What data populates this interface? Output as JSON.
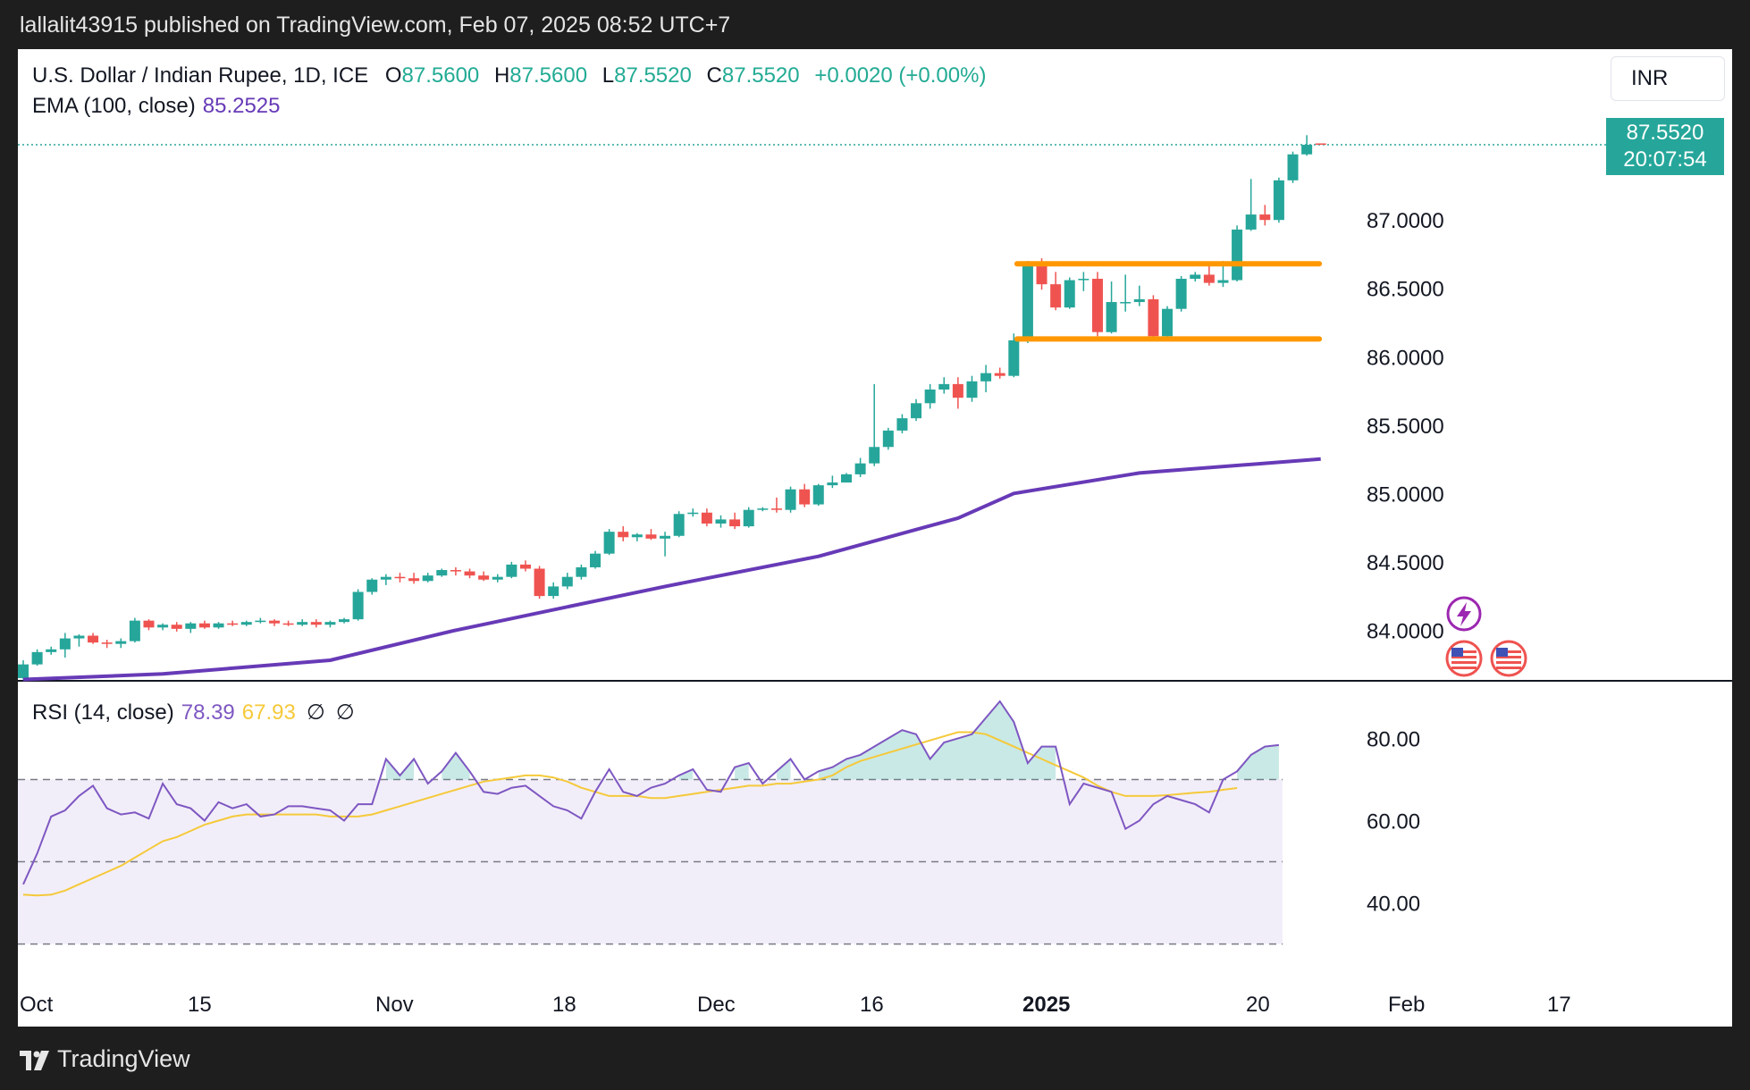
{
  "published": "lallalit43915 published on TradingView.com, Feb 07, 2025 08:52 UTC+7",
  "brand": "TradingView",
  "header": {
    "symbol": "U.S. Dollar / Indian Rupee, 1D, ICE",
    "open_label": "O",
    "open": "87.5600",
    "high_label": "H",
    "high": "87.5600",
    "low_label": "L",
    "low": "87.5520",
    "close_label": "C",
    "close": "87.5520",
    "change": "+0.0020 (+0.00%)"
  },
  "ema": {
    "label": "EMA (100, close)",
    "value": "85.2525"
  },
  "rsi": {
    "label": "RSI (14, close)",
    "value": "78.39",
    "ma_value": "67.93",
    "null1": "∅",
    "null2": "∅"
  },
  "currency": "INR",
  "last_price": {
    "price": "87.5520",
    "countdown": "20:07:54"
  },
  "colors": {
    "up": "#26a69a",
    "down": "#ef5350",
    "ema": "#673ab7",
    "rsi": "#7e57c2",
    "rsi_ma": "#f5c93a",
    "channel": "#ff9800",
    "background": "#1e1e1e"
  },
  "icons": [
    "bolt-icon",
    "us-flag-icon",
    "us-flag-icon"
  ],
  "chart_data": [
    {
      "type": "candlestick",
      "title": "U.S. Dollar / Indian Rupee, 1D, ICE",
      "y_ticks": [
        "84.0000",
        "84.5000",
        "85.0000",
        "85.5000",
        "86.0000",
        "86.5000",
        "87.0000"
      ],
      "ylim": [
        83.63,
        87.89
      ],
      "x_ticks": [
        "Oct",
        "15",
        "Nov",
        "18",
        "Dec",
        "16",
        "2025",
        "20",
        "Feb",
        "17"
      ],
      "candles_ohlc": [
        [
          83.65,
          83.78,
          83.64,
          83.75
        ],
        [
          83.75,
          83.86,
          83.74,
          83.84
        ],
        [
          83.84,
          83.88,
          83.82,
          83.86
        ],
        [
          83.86,
          83.98,
          83.8,
          83.94
        ],
        [
          83.94,
          83.97,
          83.88,
          83.96
        ],
        [
          83.96,
          83.98,
          83.9,
          83.91
        ],
        [
          83.91,
          83.93,
          83.87,
          83.9
        ],
        [
          83.9,
          83.94,
          83.87,
          83.92
        ],
        [
          83.92,
          84.09,
          83.91,
          84.07
        ],
        [
          84.07,
          84.08,
          84.0,
          84.02
        ],
        [
          84.02,
          84.05,
          84.0,
          84.04
        ],
        [
          84.04,
          84.06,
          83.99,
          84.01
        ],
        [
          84.01,
          84.06,
          83.98,
          84.05
        ],
        [
          84.05,
          84.07,
          84.01,
          84.02
        ],
        [
          84.02,
          84.06,
          84.01,
          84.05
        ],
        [
          84.05,
          84.07,
          84.03,
          84.04
        ],
        [
          84.04,
          84.07,
          84.03,
          84.06
        ],
        [
          84.06,
          84.09,
          84.05,
          84.07
        ],
        [
          84.07,
          84.08,
          84.03,
          84.05
        ],
        [
          84.05,
          84.07,
          84.03,
          84.04
        ],
        [
          84.04,
          84.08,
          84.03,
          84.06
        ],
        [
          84.06,
          84.08,
          84.02,
          84.04
        ],
        [
          84.04,
          84.07,
          84.02,
          84.06
        ],
        [
          84.06,
          84.09,
          84.05,
          84.08
        ],
        [
          84.08,
          84.3,
          84.07,
          84.28
        ],
        [
          84.28,
          84.38,
          84.26,
          84.37
        ],
        [
          84.37,
          84.41,
          84.33,
          84.39
        ],
        [
          84.39,
          84.42,
          84.35,
          84.38
        ],
        [
          84.38,
          84.42,
          84.34,
          84.36
        ],
        [
          84.36,
          84.42,
          84.35,
          84.4
        ],
        [
          84.4,
          84.45,
          84.39,
          84.44
        ],
        [
          84.44,
          84.46,
          84.4,
          84.43
        ],
        [
          84.43,
          84.45,
          84.38,
          84.4
        ],
        [
          84.4,
          84.43,
          84.36,
          84.37
        ],
        [
          84.37,
          84.41,
          84.35,
          84.39
        ],
        [
          84.39,
          84.5,
          84.38,
          84.48
        ],
        [
          84.48,
          84.51,
          84.43,
          84.45
        ],
        [
          84.45,
          84.47,
          84.23,
          84.25
        ],
        [
          84.25,
          84.35,
          84.23,
          84.32
        ],
        [
          84.32,
          84.42,
          84.3,
          84.39
        ],
        [
          84.39,
          84.48,
          84.37,
          84.46
        ],
        [
          84.46,
          84.58,
          84.45,
          84.56
        ],
        [
          84.56,
          84.74,
          84.55,
          84.72
        ],
        [
          84.72,
          84.76,
          84.65,
          84.68
        ],
        [
          84.68,
          84.71,
          84.65,
          84.7
        ],
        [
          84.7,
          84.74,
          84.66,
          84.67
        ],
        [
          84.67,
          84.72,
          84.54,
          84.69
        ],
        [
          84.69,
          84.87,
          84.68,
          84.85
        ],
        [
          84.85,
          84.89,
          84.83,
          84.86
        ],
        [
          84.86,
          84.89,
          84.76,
          84.78
        ],
        [
          84.78,
          84.84,
          84.75,
          84.81
        ],
        [
          84.81,
          84.86,
          84.74,
          84.76
        ],
        [
          84.76,
          84.9,
          84.75,
          84.88
        ],
        [
          84.88,
          84.9,
          84.87,
          84.89
        ],
        [
          84.89,
          84.97,
          84.86,
          84.88
        ],
        [
          84.88,
          85.05,
          84.86,
          85.03
        ],
        [
          85.03,
          85.07,
          84.9,
          84.92
        ],
        [
          84.92,
          85.07,
          84.91,
          85.06
        ],
        [
          85.06,
          85.13,
          85.04,
          85.08
        ],
        [
          85.08,
          85.15,
          85.1,
          85.14
        ],
        [
          85.14,
          85.26,
          85.12,
          85.22
        ],
        [
          85.22,
          85.8,
          85.2,
          85.34
        ],
        [
          85.34,
          85.48,
          85.32,
          85.46
        ],
        [
          85.46,
          85.58,
          85.44,
          85.55
        ],
        [
          85.55,
          85.69,
          85.53,
          85.66
        ],
        [
          85.66,
          85.8,
          85.62,
          85.76
        ],
        [
          85.76,
          85.85,
          85.73,
          85.8
        ],
        [
          85.8,
          85.85,
          85.62,
          85.7
        ],
        [
          85.7,
          85.86,
          85.67,
          85.82
        ],
        [
          85.82,
          85.94,
          85.74,
          85.88
        ],
        [
          85.88,
          85.92,
          85.84,
          85.86
        ],
        [
          85.86,
          86.17,
          85.85,
          86.12
        ],
        [
          86.12,
          86.7,
          86.1,
          86.68
        ],
        [
          86.68,
          86.72,
          86.49,
          86.53
        ],
        [
          86.53,
          86.62,
          86.34,
          86.36
        ],
        [
          86.36,
          86.58,
          86.35,
          86.56
        ],
        [
          86.56,
          86.62,
          86.48,
          86.57
        ],
        [
          86.57,
          86.62,
          86.15,
          86.18
        ],
        [
          86.18,
          86.55,
          86.17,
          86.4
        ],
        [
          86.4,
          86.6,
          86.33,
          86.4
        ],
        [
          86.4,
          86.52,
          86.37,
          86.42
        ],
        [
          86.42,
          86.45,
          86.12,
          86.15
        ],
        [
          86.15,
          86.37,
          86.12,
          86.35
        ],
        [
          86.35,
          86.59,
          86.33,
          86.57
        ],
        [
          86.57,
          86.62,
          86.55,
          86.6
        ],
        [
          86.6,
          86.68,
          86.52,
          86.54
        ],
        [
          86.54,
          86.7,
          86.51,
          86.56
        ],
        [
          86.56,
          86.96,
          86.55,
          86.93
        ],
        [
          86.93,
          87.3,
          86.92,
          87.04
        ],
        [
          87.04,
          87.11,
          86.96,
          87.0
        ],
        [
          87.0,
          87.31,
          86.98,
          87.29
        ],
        [
          87.29,
          87.5,
          87.27,
          87.48
        ],
        [
          87.48,
          87.62,
          87.47,
          87.55
        ],
        [
          87.56,
          87.56,
          87.55,
          87.55
        ]
      ],
      "ema_100": [
        [
          0,
          83.64
        ],
        [
          10,
          83.68
        ],
        [
          22,
          83.78
        ],
        [
          31,
          84.0
        ],
        [
          46,
          84.32
        ],
        [
          57,
          84.54
        ],
        [
          67,
          84.82
        ],
        [
          71,
          85.0
        ],
        [
          80,
          85.15
        ],
        [
          93,
          85.2525
        ]
      ],
      "channel_lines": [
        {
          "from_bar": 72,
          "to_bar": 92,
          "value": 86.68
        },
        {
          "from_bar": 72,
          "to_bar": 92,
          "value": 86.13
        }
      ]
    },
    {
      "type": "line",
      "title": "RSI (14, close)",
      "y_ticks": [
        "40.00",
        "60.00",
        "80.00"
      ],
      "ylim": [
        26,
        94
      ],
      "bands": [
        70,
        50,
        30
      ],
      "series": [
        {
          "name": "RSI (14, close)",
          "values": [
            44.5,
            52,
            61,
            62.5,
            66,
            68.5,
            63,
            61.5,
            62,
            60.5,
            69,
            64,
            63,
            60,
            64.5,
            63,
            64,
            61,
            61.5,
            63.5,
            63.5,
            63,
            62.5,
            60,
            64,
            64,
            75,
            71,
            75,
            69,
            72,
            76.5,
            72,
            67,
            66.5,
            68,
            68.5,
            66,
            63.5,
            62.5,
            60.5,
            67,
            72.5,
            67,
            66,
            68,
            69,
            71,
            72.5,
            67.5,
            67,
            73,
            74,
            69,
            72,
            75,
            70,
            72,
            73,
            75,
            76,
            78,
            80,
            82,
            81,
            75,
            79,
            80,
            81,
            85,
            89,
            84,
            74,
            78,
            78,
            64,
            69,
            68,
            67,
            58,
            60,
            64,
            66,
            65,
            64,
            62,
            70,
            72,
            76,
            78,
            78.39
          ]
        },
        {
          "name": "RSI-based MA",
          "values": [
            42,
            41.8,
            42,
            43,
            44.5,
            46,
            47.5,
            49,
            51,
            53,
            55,
            56,
            57.5,
            59,
            60,
            61,
            61.5,
            61.5,
            61.5,
            61.5,
            61.5,
            61.5,
            61,
            61,
            61,
            61.5,
            62.5,
            63.5,
            64.5,
            65.5,
            66.5,
            67.5,
            68.5,
            69.5,
            70,
            70.5,
            71,
            71,
            70.5,
            69.5,
            68,
            67,
            66,
            66,
            66,
            65.5,
            65.5,
            66,
            66.5,
            67,
            67.5,
            68,
            68.5,
            68.5,
            69,
            69,
            69.5,
            70,
            71,
            73,
            74.5,
            75.5,
            76.5,
            77.5,
            78.5,
            79.5,
            80.5,
            81.5,
            81.5,
            81,
            79.5,
            78,
            76.5,
            75,
            73.5,
            72,
            70.5,
            68.5,
            67,
            66,
            66,
            66,
            66.2,
            66.5,
            66.8,
            67,
            67.5,
            67.93
          ]
        }
      ]
    }
  ]
}
